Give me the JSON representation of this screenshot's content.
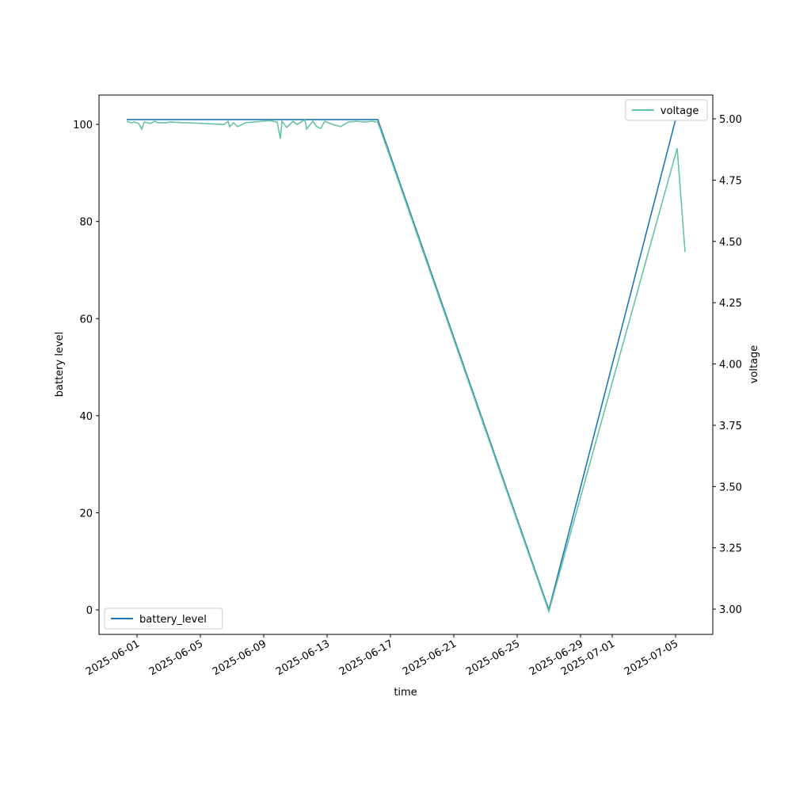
{
  "chart_data": {
    "type": "line",
    "xlabel": "time",
    "ylabel": "battery level",
    "y2label": "voltage",
    "xlim": [
      "2025-05-29T14:24",
      "2025-07-07T08:24"
    ],
    "ylim": [
      -5.05,
      106.05
    ],
    "y2lim": [
      2.897,
      5.097
    ],
    "xticks": [
      "2025-06-01",
      "2025-06-05",
      "2025-06-09",
      "2025-06-13",
      "2025-06-17",
      "2025-06-21",
      "2025-06-25",
      "2025-06-29",
      "2025-07-01",
      "2025-07-05"
    ],
    "yticks": [
      0,
      20,
      40,
      60,
      80,
      100
    ],
    "y2ticks": [
      {
        "value": 3,
        "label": "3.00"
      },
      3.25,
      {
        "value": 3.5,
        "label": "3.50"
      },
      3.75,
      {
        "value": 4,
        "label": "4.00"
      },
      4.25,
      {
        "value": 4.5,
        "label": "4.50"
      },
      4.75,
      {
        "value": 5,
        "label": "5.00"
      }
    ],
    "series": [
      {
        "name": "battery_level",
        "color": "#1f77b4",
        "legend": "lower left",
        "x": [
          "2025-05-31T08:24",
          "2025-06-16T04:48",
          "2025-06-27T00:00",
          "2025-07-05T00:00"
        ],
        "values": [
          101,
          101,
          0,
          101
        ]
      },
      {
        "name": "voltage",
        "color": "#66c2a5",
        "axis": "y2",
        "legend": "upper right",
        "x": [
          "2025-05-31T08:24",
          "2025-05-31T14:24",
          "2025-05-31T20:24",
          "2025-06-01T02:24",
          "2025-06-01T07:12",
          "2025-06-01T10:48",
          "2025-06-01T20:24",
          "2025-06-02T02:24",
          "2025-06-02T08:24",
          "2025-06-02T20:24",
          "2025-06-03T02:24",
          "2025-06-06T12:00",
          "2025-06-06T18:00",
          "2025-06-06T20:24",
          "2025-06-07T02:24",
          "2025-06-07T08:24",
          "2025-06-07T20:24",
          "2025-06-08T08:24",
          "2025-06-08T20:24",
          "2025-06-09T08:24",
          "2025-06-09T20:24",
          "2025-06-10T01:12",
          "2025-06-10T03:36",
          "2025-06-10T10:48",
          "2025-06-10T20:24",
          "2025-06-11T02:24",
          "2025-06-11T14:24",
          "2025-06-11T16:48",
          "2025-06-12T02:24",
          "2025-06-12T08:24",
          "2025-06-12T14:24",
          "2025-06-12T20:24",
          "2025-06-13T08:24",
          "2025-06-13T20:24",
          "2025-06-14T08:24",
          "2025-06-14T20:24",
          "2025-06-15T08:24",
          "2025-06-15T20:24",
          "2025-06-16T04:48",
          "2025-06-27T00:00",
          "2025-07-05T02:24",
          "2025-07-05T14:24"
        ],
        "values": [
          4.99,
          4.984,
          4.987,
          4.981,
          4.958,
          4.987,
          4.981,
          4.99,
          4.984,
          4.984,
          4.987,
          4.977,
          4.99,
          4.968,
          4.984,
          4.968,
          4.984,
          4.987,
          4.99,
          4.993,
          4.987,
          4.919,
          4.99,
          4.965,
          4.99,
          4.977,
          4.997,
          4.958,
          4.99,
          4.968,
          4.961,
          4.99,
          4.977,
          4.968,
          4.987,
          4.99,
          4.987,
          4.99,
          4.987,
          2.99,
          4.88,
          4.457
        ]
      }
    ]
  }
}
